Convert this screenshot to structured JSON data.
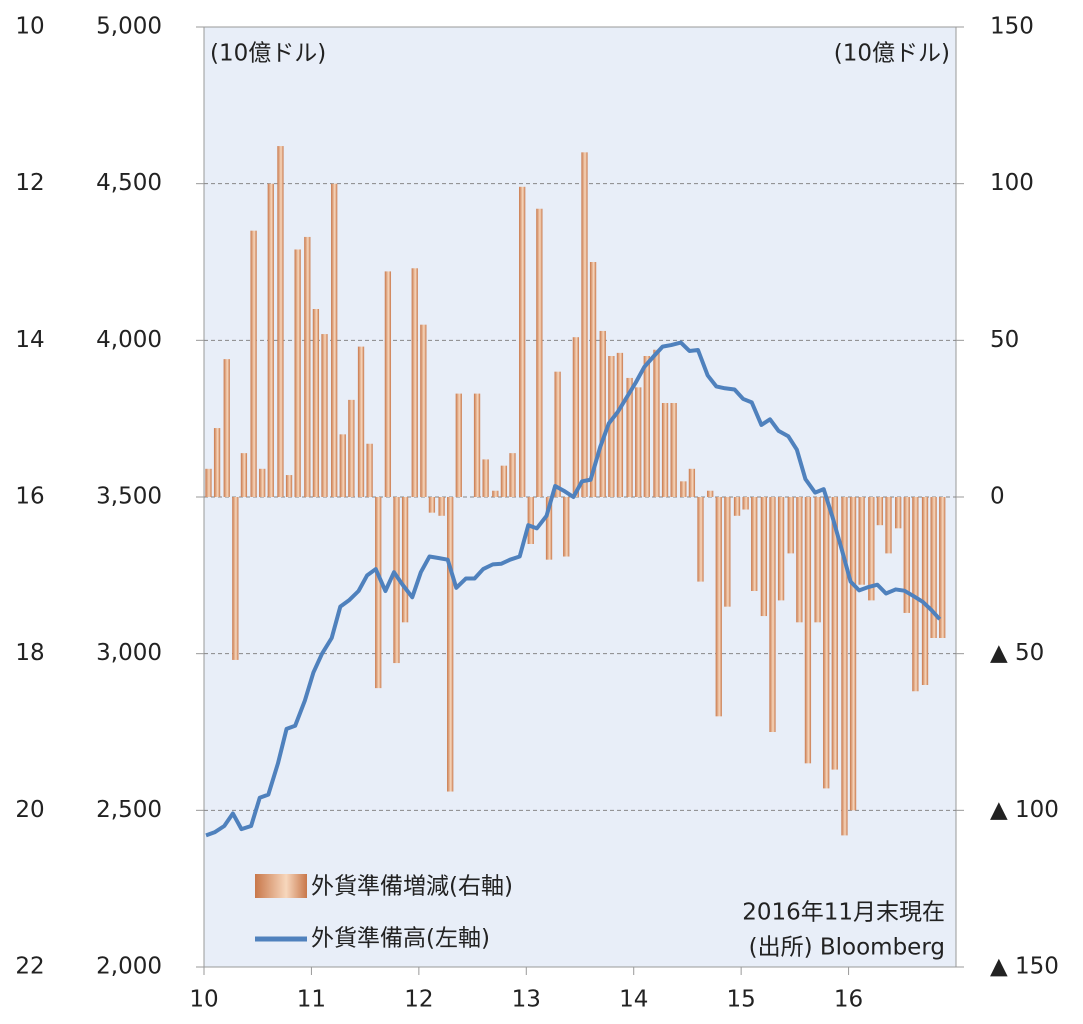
{
  "chart_data": {
    "type": "bar_line",
    "unit_left": "(10億ドル)",
    "unit_right": "(10億ドル)",
    "note": "2016年11月末現在",
    "source": "(出所) Bloomberg",
    "xlim": [
      10,
      17
    ],
    "xticks": [
      10,
      11,
      12,
      13,
      14,
      15,
      16
    ],
    "ylim": [
      2000,
      5000
    ],
    "yticks": [
      {
        "value": 2000,
        "label": "2,000"
      },
      {
        "value": 2500,
        "label": "2,500"
      },
      {
        "value": 3000,
        "label": "3,000"
      },
      {
        "value": 3500,
        "label": "3,500"
      },
      {
        "value": 4000,
        "label": "4,000"
      },
      {
        "value": 4500,
        "label": "4,500"
      },
      {
        "value": 5000,
        "label": "5,000"
      }
    ],
    "y2lim": [
      -150,
      150
    ],
    "y2ticks": [
      {
        "value": -150,
        "label": "▲ 150"
      },
      {
        "value": -100,
        "label": "▲ 100"
      },
      {
        "value": -50,
        "label": "▲ 50"
      },
      0,
      50,
      100,
      150
    ],
    "y3lim": [
      22,
      10
    ],
    "y3ticks": [
      10,
      12,
      14,
      16,
      18,
      20,
      22
    ],
    "grid": true,
    "x": [
      10,
      10.08,
      10.17,
      10.25,
      10.33,
      10.42,
      10.5,
      10.58,
      10.67,
      10.75,
      10.83,
      10.92,
      11,
      11.08,
      11.17,
      11.25,
      11.33,
      11.42,
      11.5,
      11.58,
      11.67,
      11.75,
      11.83,
      11.92,
      12,
      12.08,
      12.17,
      12.25,
      12.33,
      12.42,
      12.5,
      12.58,
      12.67,
      12.75,
      12.83,
      12.92,
      13,
      13.08,
      13.17,
      13.25,
      13.33,
      13.42,
      13.5,
      13.58,
      13.67,
      13.75,
      13.83,
      13.92,
      14,
      14.08,
      14.17,
      14.25,
      14.33,
      14.42,
      14.5,
      14.58,
      14.67,
      14.75,
      14.83,
      14.92,
      15,
      15.08,
      15.17,
      15.25,
      15.33,
      15.42,
      15.5,
      15.58,
      15.67,
      15.75,
      15.83,
      15.92,
      16,
      16.08,
      16.17,
      16.25,
      16.33,
      16.42,
      16.5,
      16.58,
      16.67,
      16.75,
      16.83
    ],
    "series": [
      {
        "name": "外貨準備増減(右軸)",
        "type": "bar",
        "axis": "y2",
        "color": "#c8774a",
        "values": [
          9,
          22,
          44,
          -52,
          14,
          85,
          9,
          100,
          112,
          7,
          79,
          83,
          60,
          52,
          100,
          20,
          31,
          48,
          17,
          -61,
          72,
          -53,
          -40,
          73,
          55,
          -5,
          -6,
          -94,
          33,
          0,
          33,
          12,
          2,
          10,
          14,
          99,
          -15,
          92,
          -20,
          40,
          -19,
          51,
          110,
          75,
          53,
          45,
          46,
          38,
          35,
          45,
          47,
          30,
          30,
          5,
          9,
          -27,
          2,
          -70,
          -35,
          -6,
          -4,
          -30,
          -38,
          -75,
          -33,
          -18,
          -40,
          -85,
          -40,
          -93,
          -87,
          -108,
          -100,
          -28,
          -33,
          -9,
          -18,
          -10,
          -37,
          -62,
          -60,
          -45,
          -45
        ]
      },
      {
        "name": "外貨準備高(左軸)",
        "type": "line",
        "color": "#4f81bd",
        "values": [
          2420,
          2430,
          2450,
          2490,
          2440,
          2450,
          2540,
          2550,
          2650,
          2760,
          2770,
          2850,
          2940,
          3000,
          3050,
          3150,
          3170,
          3200,
          3250,
          3270,
          3200,
          3260,
          3220,
          3180,
          3260,
          3310,
          3305,
          3300,
          3210,
          3240,
          3240,
          3270,
          3285,
          3287,
          3300,
          3310,
          3410,
          3400,
          3440,
          3535,
          3520,
          3500,
          3550,
          3555,
          3660,
          3735,
          3770,
          3820,
          3865,
          3915,
          3950,
          3980,
          3985,
          3993,
          3966,
          3969,
          3888,
          3853,
          3847,
          3843,
          3813,
          3802,
          3730,
          3748,
          3711,
          3694,
          3651,
          3557,
          3514,
          3525,
          3438,
          3330,
          3230,
          3202,
          3213,
          3220,
          3192,
          3205,
          3201,
          3185,
          3166,
          3140,
          3110
        ]
      }
    ]
  }
}
